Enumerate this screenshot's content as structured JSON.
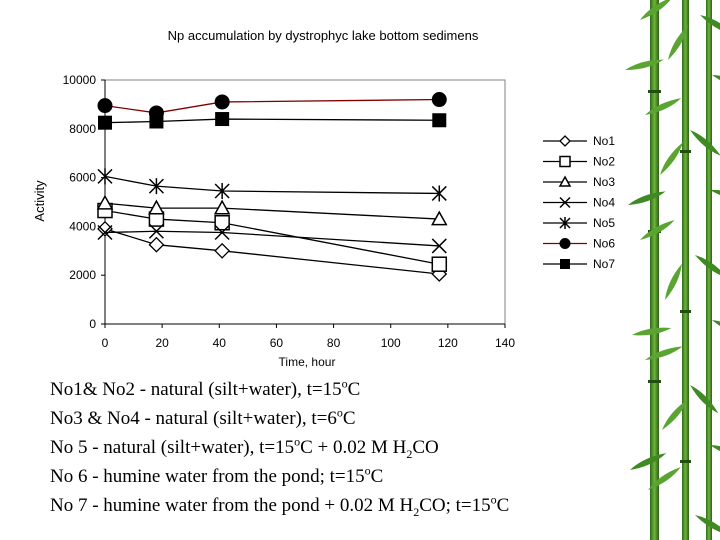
{
  "chart_data": {
    "type": "line",
    "title": "Np accumulation by dystrophyc lake bottom sedimens",
    "xlabel": "Time, hour",
    "ylabel": "Activity",
    "xlim": [
      0,
      140
    ],
    "ylim": [
      0,
      10000
    ],
    "xticks": [
      0,
      20,
      40,
      60,
      80,
      100,
      120,
      140
    ],
    "yticks": [
      0,
      2000,
      4000,
      6000,
      8000,
      10000
    ],
    "legend_position": "right",
    "series": [
      {
        "name": "No1",
        "marker": "diamond",
        "color": "#000000",
        "x": [
          0,
          18,
          41,
          117
        ],
        "y": [
          3900,
          3250,
          3000,
          2050
        ]
      },
      {
        "name": "No2",
        "marker": "square-open",
        "color": "#000000",
        "x": [
          0,
          18,
          41,
          117
        ],
        "y": [
          4650,
          4300,
          4150,
          2450
        ]
      },
      {
        "name": "No3",
        "marker": "triangle",
        "color": "#000000",
        "x": [
          0,
          18,
          41,
          117
        ],
        "y": [
          4950,
          4750,
          4750,
          4300
        ]
      },
      {
        "name": "No4",
        "marker": "x",
        "color": "#000000",
        "x": [
          0,
          18,
          41,
          117
        ],
        "y": [
          3750,
          3800,
          3750,
          3200
        ]
      },
      {
        "name": "No5",
        "marker": "asterisk",
        "color": "#000000",
        "x": [
          0,
          18,
          41,
          117
        ],
        "y": [
          6050,
          5650,
          5450,
          5350
        ]
      },
      {
        "name": "No6",
        "marker": "circle",
        "color": "#800000",
        "x": [
          0,
          18,
          41,
          117
        ],
        "y": [
          8950,
          8650,
          9100,
          9200
        ]
      },
      {
        "name": "No7",
        "marker": "square-filled",
        "color": "#000000",
        "x": [
          0,
          18,
          41,
          117
        ],
        "y": [
          8250,
          8300,
          8400,
          8350
        ]
      }
    ]
  },
  "notes": [
    {
      "parts": [
        "No1& No2 - natural (silt+water), t=15",
        "o",
        "C"
      ]
    },
    {
      "parts": [
        "No3 & No4 - natural (silt+water), t=6",
        "o",
        "C"
      ]
    },
    {
      "parts": [
        "No 5 - natural (silt+water), t=15",
        "o",
        "C + 0.02 M H",
        "2",
        "CO"
      ]
    },
    {
      "parts": [
        "No 6 - humine water from the pond; t=15",
        "o",
        "C"
      ]
    },
    {
      "parts": [
        "No 7 - humine water from the pond + 0.02 M H",
        "2",
        "CO; t=15",
        "o",
        "C"
      ]
    }
  ]
}
